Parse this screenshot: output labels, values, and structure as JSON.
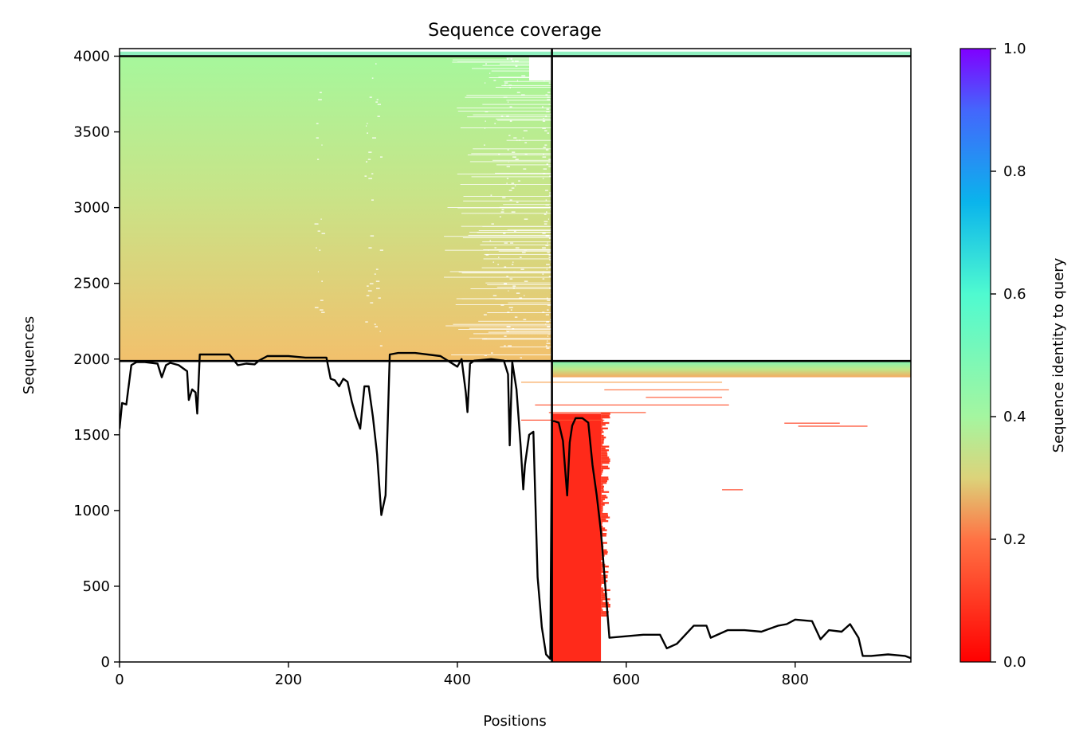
{
  "chart_data": {
    "type": "heatmap",
    "title": "Sequence coverage",
    "xlabel": "Positions",
    "ylabel": "Sequences",
    "xlim": [
      0,
      937
    ],
    "ylim": [
      0,
      4050
    ],
    "x_ticks": [
      0,
      200,
      400,
      600,
      800
    ],
    "y_ticks": [
      0,
      500,
      1000,
      1500,
      2000,
      2500,
      3000,
      3500,
      4000
    ],
    "colorbar": {
      "label": "Sequence identity to query",
      "range": [
        0,
        1
      ],
      "ticks": [
        0.0,
        0.2,
        0.4,
        0.6,
        0.8,
        1.0
      ],
      "tick_labels": [
        "0.0",
        "0.2",
        "0.4",
        "0.6",
        "0.8",
        "1.0"
      ],
      "colormap": "rainbow_r"
    },
    "chain_boundaries": {
      "x": [
        512
      ],
      "y": [
        1987,
        4000
      ]
    },
    "blocks": [
      {
        "name": "chain-a-msa",
        "x0": 0,
        "x1": 512,
        "y0": 1987,
        "y1": 4000,
        "identity_top": 0.42,
        "identity_bottom": 0.25
      },
      {
        "name": "chain-b-msa-top",
        "x0": 512,
        "x1": 937,
        "y0": 1880,
        "y1": 1987,
        "identity_top": 0.48,
        "identity_bottom": 0.3
      },
      {
        "name": "chain-b-msa-low",
        "x0": 512,
        "x1": 570,
        "y0": 0,
        "y1": 1640,
        "identity_top": 0.05,
        "identity_bottom": 0.05
      }
    ],
    "coverage_line": {
      "x": [
        0,
        3,
        8,
        14,
        20,
        30,
        45,
        50,
        55,
        60,
        70,
        80,
        82,
        86,
        90,
        92,
        95,
        110,
        130,
        140,
        150,
        160,
        165,
        175,
        185,
        200,
        220,
        245,
        250,
        255,
        260,
        265,
        270,
        275,
        280,
        285,
        290,
        295,
        300,
        305,
        310,
        315,
        320,
        330,
        350,
        380,
        400,
        405,
        410,
        412,
        415,
        420,
        440,
        455,
        460,
        462,
        465,
        470,
        475,
        478,
        480,
        485,
        490,
        495,
        500,
        505,
        510,
        512,
        515,
        520,
        525,
        530,
        533,
        536,
        540,
        548,
        555,
        560,
        565,
        570,
        580,
        600,
        620,
        640,
        648,
        660,
        680,
        695,
        700,
        720,
        740,
        760,
        780,
        790,
        800,
        820,
        830,
        840,
        855,
        865,
        875,
        880,
        890,
        910,
        930,
        937
      ],
      "y": [
        1540,
        1710,
        1700,
        1960,
        1980,
        1980,
        1970,
        1880,
        1960,
        1975,
        1960,
        1920,
        1730,
        1800,
        1780,
        1640,
        2030,
        2030,
        2030,
        1960,
        1970,
        1965,
        1990,
        2020,
        2020,
        2020,
        2010,
        2010,
        1870,
        1860,
        1820,
        1870,
        1850,
        1720,
        1620,
        1540,
        1820,
        1820,
        1620,
        1370,
        970,
        1100,
        2030,
        2040,
        2040,
        2020,
        1950,
        2000,
        1780,
        1650,
        1970,
        1990,
        2000,
        1990,
        1900,
        1430,
        1980,
        1800,
        1420,
        1140,
        1300,
        1500,
        1520,
        560,
        230,
        50,
        20,
        1590,
        1590,
        1580,
        1460,
        1100,
        1450,
        1560,
        1610,
        1610,
        1580,
        1300,
        1100,
        860,
        160,
        170,
        180,
        180,
        90,
        120,
        240,
        240,
        160,
        210,
        210,
        200,
        240,
        250,
        280,
        270,
        150,
        210,
        200,
        250,
        160,
        40,
        40,
        50,
        40,
        25
      ]
    }
  }
}
